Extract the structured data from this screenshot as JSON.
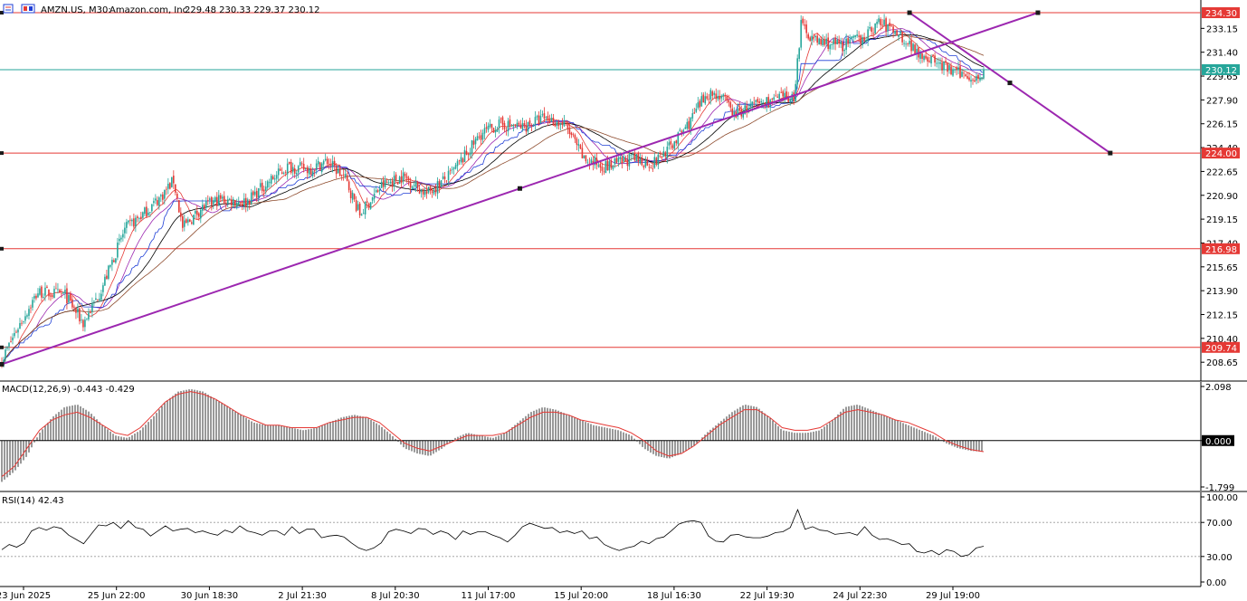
{
  "header": {
    "symbol": "AMZN.US, M30:",
    "name": "Amazon.com, Inc.",
    "ohlc": "229.48 230.33 229.37 230.12"
  },
  "colors": {
    "bull": "#26a69a",
    "bear": "#e53935",
    "hline": "#e53935",
    "current": "#26a69a",
    "trend": "#9c27b0",
    "ma_red": "#e53935",
    "ma_blue": "#1f3fd6",
    "ma_black": "#000000",
    "ma_purple": "#9c27b0",
    "ma_brown": "#8d4a2c"
  },
  "chart_data": [
    {
      "type": "candlestick",
      "title": "AMZN.US, M30: Amazon.com, Inc.",
      "ylim": [
        207.6,
        234.9
      ],
      "y_ticks": [
        "233.15",
        "231.40",
        "229.65",
        "227.90",
        "226.15",
        "224.40",
        "222.65",
        "220.90",
        "219.15",
        "217.40",
        "215.65",
        "213.90",
        "212.15",
        "210.40",
        "208.65"
      ],
      "x_tick_labels": [
        "23 Jun 2025",
        "25 Jun 22:00",
        "30 Jun 18:30",
        "2 Jul 21:30",
        "8 Jul 20:30",
        "11 Jul 17:00",
        "15 Jul 20:00",
        "18 Jul 16:30",
        "22 Jul 19:30",
        "24 Jul 22:30",
        "29 Jul 19:00"
      ],
      "horizontal_levels": [
        {
          "label": "234.30",
          "value": 234.3
        },
        {
          "label": "224.00",
          "value": 224.0
        },
        {
          "label": "216.98",
          "value": 216.98
        },
        {
          "label": "209.74",
          "value": 209.74
        }
      ],
      "current_price": {
        "label": "230.12",
        "value": 230.12
      },
      "anchors": [
        {
          "x": 0,
          "y": 208.8
        },
        {
          "x": 8,
          "y": 211.0
        },
        {
          "x": 20,
          "y": 213.8
        },
        {
          "x": 35,
          "y": 213.6
        },
        {
          "x": 45,
          "y": 211.5
        },
        {
          "x": 55,
          "y": 214.0
        },
        {
          "x": 68,
          "y": 218.4
        },
        {
          "x": 78,
          "y": 219.5
        },
        {
          "x": 88,
          "y": 220.8
        },
        {
          "x": 95,
          "y": 222.0
        },
        {
          "x": 100,
          "y": 218.5
        },
        {
          "x": 110,
          "y": 219.9
        },
        {
          "x": 120,
          "y": 220.6
        },
        {
          "x": 135,
          "y": 220.4
        },
        {
          "x": 145,
          "y": 221.6
        },
        {
          "x": 158,
          "y": 223.0
        },
        {
          "x": 170,
          "y": 222.8
        },
        {
          "x": 180,
          "y": 223.4
        },
        {
          "x": 190,
          "y": 222.1
        },
        {
          "x": 198,
          "y": 219.5
        },
        {
          "x": 210,
          "y": 221.6
        },
        {
          "x": 222,
          "y": 222.3
        },
        {
          "x": 235,
          "y": 221.0
        },
        {
          "x": 248,
          "y": 222.4
        },
        {
          "x": 255,
          "y": 223.6
        },
        {
          "x": 265,
          "y": 225.4
        },
        {
          "x": 275,
          "y": 226.1
        },
        {
          "x": 288,
          "y": 225.9
        },
        {
          "x": 300,
          "y": 226.6
        },
        {
          "x": 312,
          "y": 226.0
        },
        {
          "x": 322,
          "y": 223.5
        },
        {
          "x": 335,
          "y": 223.0
        },
        {
          "x": 348,
          "y": 223.6
        },
        {
          "x": 360,
          "y": 223.2
        },
        {
          "x": 370,
          "y": 224.5
        },
        {
          "x": 380,
          "y": 226.2
        },
        {
          "x": 390,
          "y": 228.4
        },
        {
          "x": 398,
          "y": 228.2
        },
        {
          "x": 405,
          "y": 226.8
        },
        {
          "x": 418,
          "y": 227.6
        },
        {
          "x": 430,
          "y": 228.0
        },
        {
          "x": 438,
          "y": 228.1
        },
        {
          "x": 442,
          "y": 233.4
        },
        {
          "x": 450,
          "y": 232.2
        },
        {
          "x": 465,
          "y": 231.9
        },
        {
          "x": 478,
          "y": 232.6
        },
        {
          "x": 485,
          "y": 233.6
        },
        {
          "x": 495,
          "y": 232.9
        },
        {
          "x": 505,
          "y": 231.6
        },
        {
          "x": 515,
          "y": 230.8
        },
        {
          "x": 525,
          "y": 230.0
        },
        {
          "x": 534,
          "y": 229.7
        },
        {
          "x": 540,
          "y": 229.5
        },
        {
          "x": 543,
          "y": 230.12
        }
      ],
      "trendlines": [
        {
          "from": [
            0,
            208.5
          ],
          "to": [
            573,
            234.3
          ]
        },
        {
          "from": [
            502,
            234.3
          ],
          "to": [
            613,
            224.0
          ]
        }
      ]
    },
    {
      "type": "histogram",
      "title": "MACD(12,26,9) -0.443 -0.429",
      "ylim": [
        -1.799,
        2.098
      ],
      "y_tick_labels": [
        "2.098",
        "0.000",
        "-1.799"
      ],
      "values": [
        -1.6,
        -1.2,
        -0.6,
        0.3,
        0.9,
        1.3,
        1.4,
        1.1,
        0.6,
        0.2,
        0.1,
        0.4,
        0.9,
        1.5,
        1.9,
        2.0,
        1.9,
        1.6,
        1.3,
        1.0,
        0.7,
        0.6,
        0.6,
        0.5,
        0.4,
        0.5,
        0.7,
        0.9,
        1.0,
        0.9,
        0.6,
        0.2,
        -0.3,
        -0.5,
        -0.6,
        -0.3,
        0.1,
        0.3,
        0.2,
        0.1,
        0.3,
        0.7,
        1.1,
        1.3,
        1.2,
        1.0,
        0.8,
        0.6,
        0.5,
        0.4,
        0.2,
        -0.3,
        -0.6,
        -0.7,
        -0.5,
        -0.2,
        0.3,
        0.7,
        1.1,
        1.4,
        1.3,
        0.9,
        0.4,
        0.3,
        0.3,
        0.4,
        0.8,
        1.3,
        1.4,
        1.2,
        1.0,
        0.8,
        0.6,
        0.4,
        0.2,
        -0.1,
        -0.3,
        -0.4,
        -0.44
      ],
      "signal": [
        -1.4,
        -1.0,
        -0.3,
        0.4,
        0.8,
        1.0,
        1.1,
        0.9,
        0.6,
        0.3,
        0.2,
        0.5,
        1.0,
        1.5,
        1.8,
        1.9,
        1.8,
        1.6,
        1.3,
        1.0,
        0.8,
        0.6,
        0.6,
        0.5,
        0.5,
        0.5,
        0.7,
        0.8,
        0.9,
        0.9,
        0.7,
        0.3,
        -0.1,
        -0.3,
        -0.4,
        -0.2,
        0.0,
        0.2,
        0.2,
        0.2,
        0.3,
        0.6,
        0.9,
        1.1,
        1.1,
        1.0,
        0.8,
        0.7,
        0.6,
        0.5,
        0.3,
        0.0,
        -0.4,
        -0.6,
        -0.5,
        -0.2,
        0.2,
        0.6,
        0.9,
        1.2,
        1.2,
        0.9,
        0.5,
        0.4,
        0.4,
        0.5,
        0.8,
        1.1,
        1.2,
        1.1,
        1.0,
        0.8,
        0.7,
        0.5,
        0.3,
        0.0,
        -0.2,
        -0.35,
        -0.43
      ]
    },
    {
      "type": "line",
      "title": "RSI(14) 42.43",
      "ylim": [
        0,
        100
      ],
      "y_tick_labels": [
        "100.00",
        "70.00",
        "30.00",
        "0.00"
      ],
      "levels": [
        70,
        30
      ],
      "values": [
        38,
        44,
        41,
        46,
        60,
        64,
        61,
        65,
        63,
        55,
        50,
        45,
        56,
        67,
        66,
        70,
        63,
        72,
        64,
        62,
        54,
        60,
        66,
        60,
        62,
        63,
        58,
        60,
        57,
        55,
        61,
        58,
        66,
        60,
        58,
        55,
        60,
        60,
        55,
        65,
        57,
        62,
        62,
        52,
        54,
        55,
        53,
        46,
        40,
        37,
        40,
        46,
        59,
        62,
        60,
        57,
        63,
        62,
        56,
        60,
        57,
        50,
        60,
        56,
        59,
        59,
        55,
        52,
        47,
        55,
        65,
        69,
        66,
        63,
        64,
        58,
        60,
        57,
        60,
        51,
        53,
        44,
        40,
        37,
        40,
        42,
        48,
        45,
        51,
        53,
        60,
        68,
        71,
        72,
        70,
        54,
        48,
        47,
        55,
        56,
        53,
        52,
        52,
        54,
        58,
        59,
        64,
        85,
        62,
        65,
        61,
        60,
        56,
        57,
        58,
        55,
        65,
        55,
        50,
        51,
        48,
        44,
        45,
        36,
        34,
        37,
        32,
        38,
        36,
        30,
        32,
        40,
        42
      ]
    }
  ]
}
